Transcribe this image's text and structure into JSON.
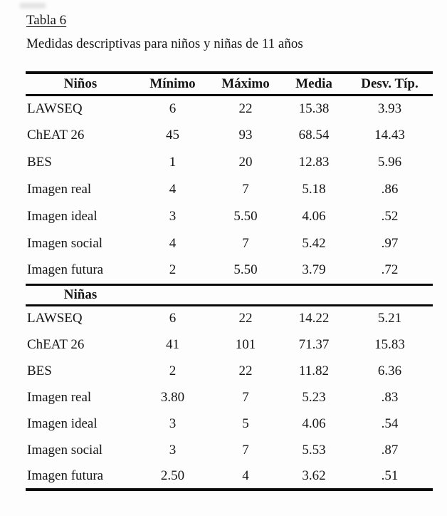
{
  "caption": {
    "title": "Tabla 6",
    "subtitle": "Medidas descriptivas para niños y niñas de 11 años"
  },
  "table": {
    "stat_columns": [
      "Mínimo",
      "Máximo",
      "Media",
      "Desv. Típ."
    ],
    "sections": [
      {
        "header": "Niños",
        "rows": [
          {
            "label": "LAWSEQ",
            "min": "6",
            "max": "22",
            "media": "15.38",
            "desv": "3.93"
          },
          {
            "label": "ChEAT 26",
            "min": "45",
            "max": "93",
            "media": "68.54",
            "desv": "14.43"
          },
          {
            "label": "BES",
            "min": "1",
            "max": "20",
            "media": "12.83",
            "desv": "5.96"
          },
          {
            "label": "Imagen real",
            "min": "4",
            "max": "7",
            "media": "5.18",
            "desv": ".86"
          },
          {
            "label": "Imagen ideal",
            "min": "3",
            "max": "5.50",
            "media": "4.06",
            "desv": ".52"
          },
          {
            "label": "Imagen social",
            "min": "4",
            "max": "7",
            "media": "5.42",
            "desv": ".97"
          },
          {
            "label": "Imagen futura",
            "min": "2",
            "max": "5.50",
            "media": "3.79",
            "desv": ".72"
          }
        ]
      },
      {
        "header": "Niñas",
        "rows": [
          {
            "label": "LAWSEQ",
            "min": "6",
            "max": "22",
            "media": "14.22",
            "desv": "5.21"
          },
          {
            "label": "ChEAT 26",
            "min": "41",
            "max": "101",
            "media": "71.37",
            "desv": "15.83"
          },
          {
            "label": "BES",
            "min": "2",
            "max": "22",
            "media": "11.82",
            "desv": "6.36"
          },
          {
            "label": "Imagen real",
            "min": "3.80",
            "max": "7",
            "media": "5.23",
            "desv": ".83"
          },
          {
            "label": "Imagen ideal",
            "min": "3",
            "max": "5",
            "media": "4.06",
            "desv": ".54"
          },
          {
            "label": "Imagen social",
            "min": "3",
            "max": "7",
            "media": "5.53",
            "desv": ".87"
          },
          {
            "label": "Imagen futura",
            "min": "2.50",
            "max": "4",
            "media": "3.62",
            "desv": ".51"
          }
        ]
      }
    ]
  }
}
